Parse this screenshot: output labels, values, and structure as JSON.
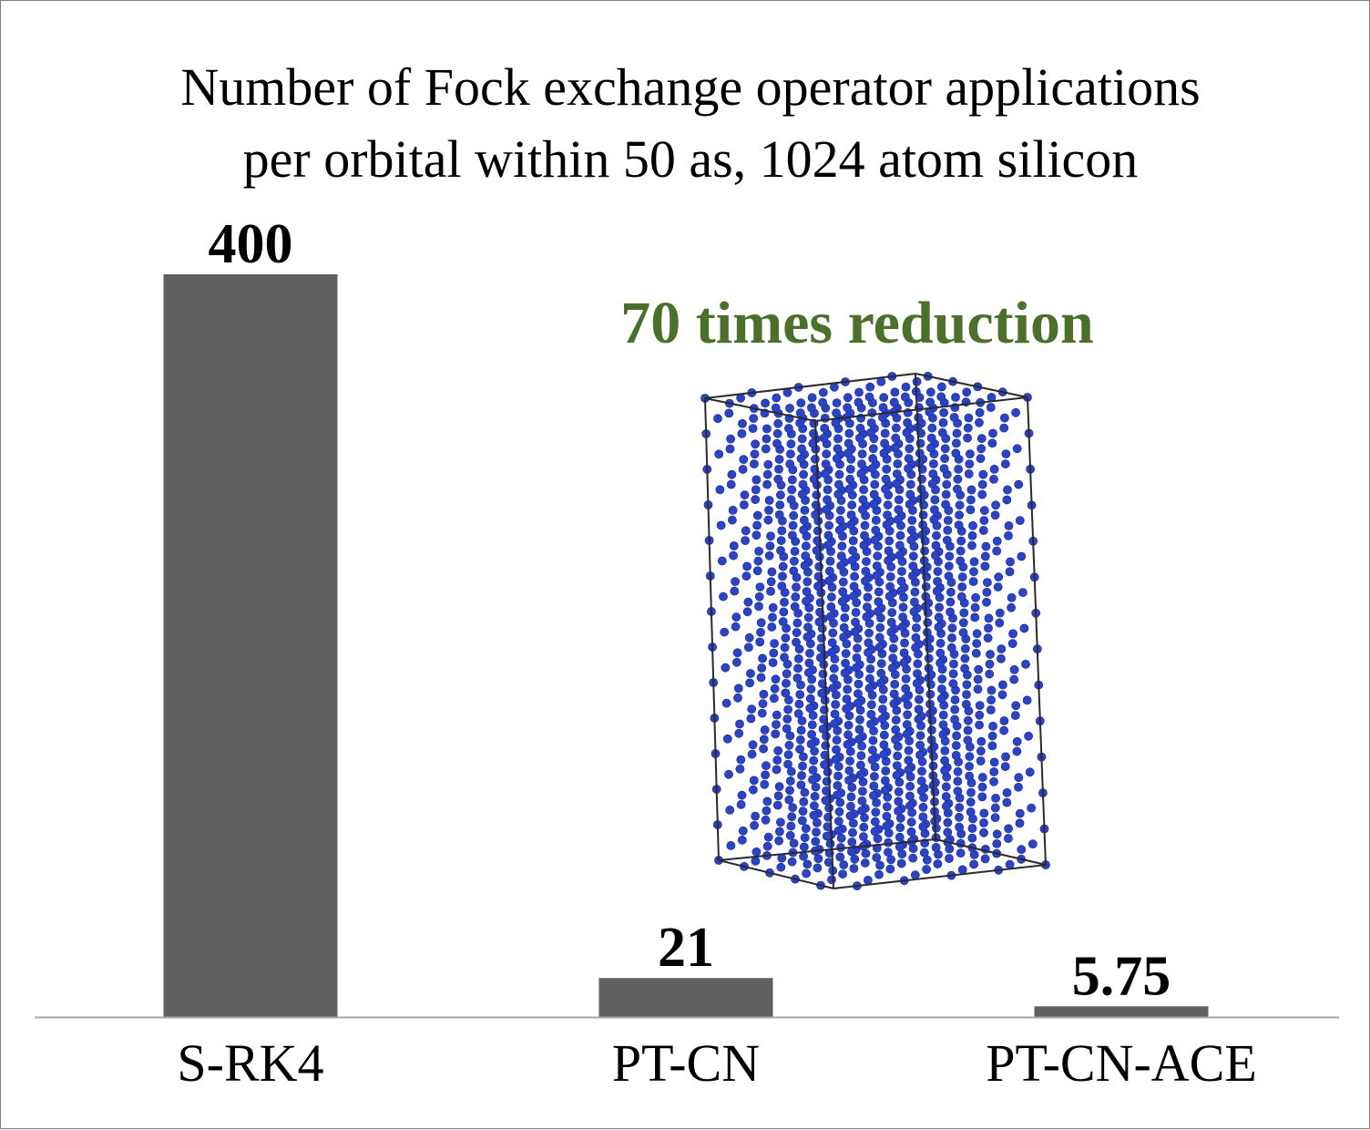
{
  "chart_data": {
    "type": "bar",
    "title": [
      "Number of Fock exchange operator applications",
      "per orbital within 50 as, 1024 atom silicon"
    ],
    "categories": [
      "S-RK4",
      "PT-CN",
      "PT-CN-ACE"
    ],
    "values": [
      400,
      21,
      5.75
    ],
    "value_labels": [
      "400",
      "21",
      "5.75"
    ],
    "xlabel": "",
    "ylabel": "",
    "ylim": [
      0,
      400
    ],
    "grid": false,
    "legend": "none",
    "annotation": "70 times reduction",
    "colors": {
      "bar": "#616161",
      "annotation": "#4a7129",
      "atom": "#2b43c8",
      "axis": "#a6a6a6",
      "cell_edge": "#2a2a2a"
    }
  },
  "inset_image": {
    "icon": "silicon-supercell-icon"
  }
}
